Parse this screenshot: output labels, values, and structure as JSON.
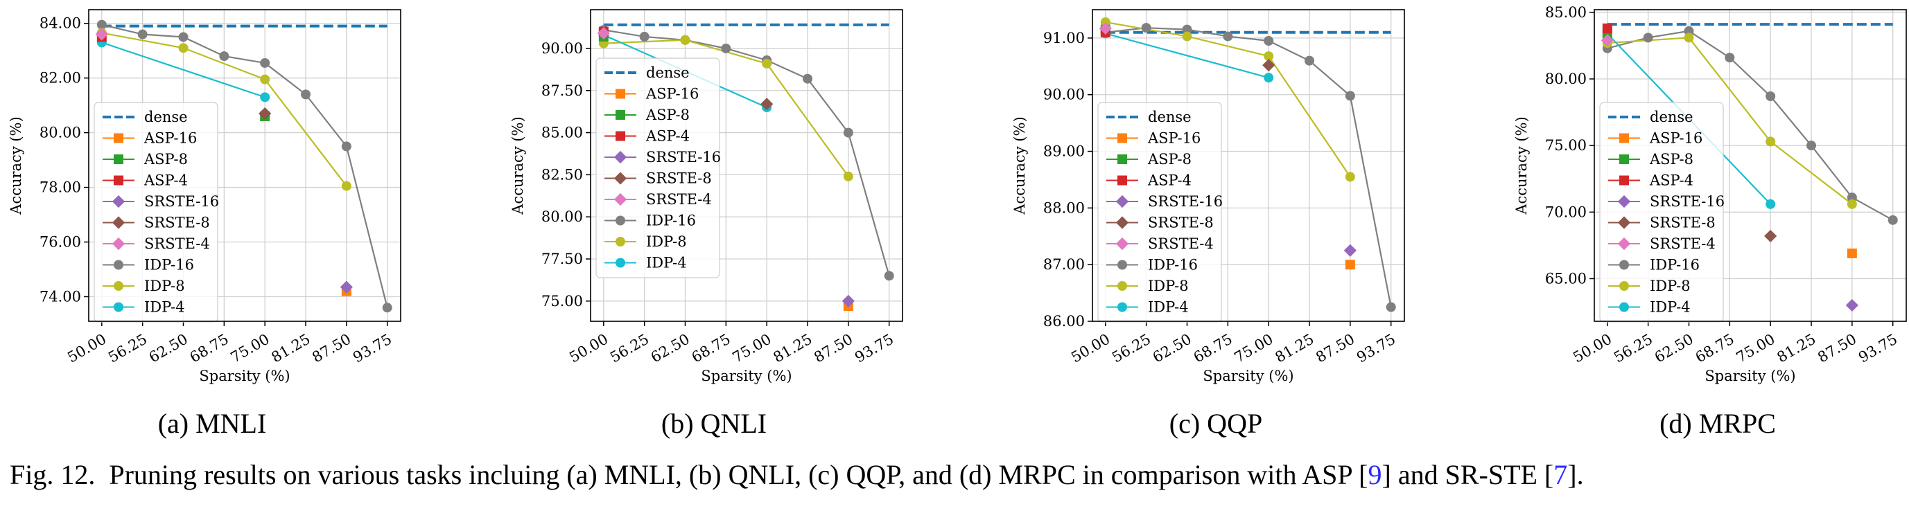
{
  "figure": {
    "caption_prefix": "Fig. 12.",
    "caption_part1": "Pruning results on various tasks incluing (a) MNLI, (b) QNLI, (c) QQP, and (d) MRPC in comparison with ASP [",
    "caption_ref1": "9",
    "caption_part2": "] and SR-STE [",
    "caption_ref2": "7",
    "caption_part3": "]."
  },
  "subcaptions": [
    "(a) MNLI",
    "(b) QNLI",
    "(c) QQP",
    "(d) MRPC"
  ],
  "colors": {
    "dense": "#1f77b4",
    "ASP-16": "#ff7f0e",
    "ASP-8": "#2ca02c",
    "ASP-4": "#d62728",
    "SRSTE-16": "#9467bd",
    "SRSTE-8": "#8c564b",
    "SRSTE-4": "#e377c2",
    "IDP-16": "#7f7f7f",
    "IDP-8": "#bcbd22",
    "IDP-4": "#17becf"
  },
  "legend": [
    {
      "name": "dense",
      "marker": "dash"
    },
    {
      "name": "ASP-16",
      "marker": "square"
    },
    {
      "name": "ASP-8",
      "marker": "square"
    },
    {
      "name": "ASP-4",
      "marker": "square"
    },
    {
      "name": "SRSTE-16",
      "marker": "diamond"
    },
    {
      "name": "SRSTE-8",
      "marker": "diamond"
    },
    {
      "name": "SRSTE-4",
      "marker": "diamond"
    },
    {
      "name": "IDP-16",
      "marker": "circle"
    },
    {
      "name": "IDP-8",
      "marker": "circle"
    },
    {
      "name": "IDP-4",
      "marker": "circle"
    }
  ],
  "chart_data": [
    {
      "type": "line",
      "xlabel": "Sparsity (%)",
      "ylabel": "Accuracy (%)",
      "x_ticks": [
        50.0,
        56.25,
        62.5,
        68.75,
        75.0,
        81.25,
        87.5,
        93.75
      ],
      "x_tick_labels": [
        "50.00",
        "56.25",
        "62.50",
        "68.75",
        "75.00",
        "81.25",
        "87.50",
        "93.75"
      ],
      "xlim": [
        48.0,
        95.8
      ],
      "ylim": [
        73.1,
        84.5
      ],
      "y_ticks": [
        74,
        76,
        78,
        80,
        82,
        84
      ],
      "y_tick_labels": [
        "74.00",
        "76.00",
        "78.00",
        "80.00",
        "82.00",
        "84.00"
      ],
      "grid": true,
      "legend_position": "lower-left",
      "dense": 83.9,
      "series": [
        {
          "name": "ASP-16",
          "x": [
            87.5
          ],
          "y": [
            74.2
          ]
        },
        {
          "name": "ASP-8",
          "x": [
            75.0
          ],
          "y": [
            80.6
          ]
        },
        {
          "name": "ASP-4",
          "x": [
            50.0
          ],
          "y": [
            83.5
          ]
        },
        {
          "name": "SRSTE-16",
          "x": [
            87.5
          ],
          "y": [
            74.35
          ]
        },
        {
          "name": "SRSTE-8",
          "x": [
            75.0
          ],
          "y": [
            80.7
          ]
        },
        {
          "name": "SRSTE-4",
          "x": [
            50.0
          ],
          "y": [
            83.6
          ]
        },
        {
          "name": "IDP-16",
          "x": [
            50.0,
            56.25,
            62.5,
            68.75,
            75.0,
            81.25,
            87.5,
            93.75
          ],
          "y": [
            83.95,
            83.6,
            83.5,
            82.8,
            82.55,
            81.4,
            79.5,
            73.6
          ]
        },
        {
          "name": "IDP-8",
          "x": [
            50.0,
            62.5,
            75.0,
            87.5
          ],
          "y": [
            83.65,
            83.1,
            81.95,
            78.05
          ]
        },
        {
          "name": "IDP-4",
          "x": [
            50.0,
            75.0
          ],
          "y": [
            83.3,
            81.3
          ]
        }
      ]
    },
    {
      "type": "line",
      "xlabel": "Sparsity (%)",
      "ylabel": "Accuracy (%)",
      "x_ticks": [
        50.0,
        56.25,
        62.5,
        68.75,
        75.0,
        81.25,
        87.5,
        93.75
      ],
      "x_tick_labels": [
        "50.00",
        "56.25",
        "62.50",
        "68.75",
        "75.00",
        "81.25",
        "87.50",
        "93.75"
      ],
      "xlim": [
        48.0,
        95.8
      ],
      "ylim": [
        73.8,
        92.3
      ],
      "y_ticks": [
        75.0,
        77.5,
        80.0,
        82.5,
        85.0,
        87.5,
        90.0
      ],
      "y_tick_labels": [
        "75.00",
        "77.50",
        "80.00",
        "82.50",
        "85.00",
        "87.50",
        "90.00"
      ],
      "grid": true,
      "legend_position": "left",
      "dense": 91.4,
      "series": [
        {
          "name": "ASP-16",
          "x": [
            87.5
          ],
          "y": [
            74.7
          ]
        },
        {
          "name": "ASP-8",
          "x": [
            50.0
          ],
          "y": [
            90.7
          ]
        },
        {
          "name": "ASP-4",
          "x": [
            50.0
          ],
          "y": [
            91.0
          ]
        },
        {
          "name": "SRSTE-16",
          "x": [
            87.5
          ],
          "y": [
            75.0
          ]
        },
        {
          "name": "SRSTE-8",
          "x": [
            75.0
          ],
          "y": [
            86.7
          ]
        },
        {
          "name": "SRSTE-4",
          "x": [
            50.0
          ],
          "y": [
            90.9
          ]
        },
        {
          "name": "IDP-16",
          "x": [
            50.0,
            56.25,
            62.5,
            68.75,
            75.0,
            81.25,
            87.5,
            93.75
          ],
          "y": [
            91.1,
            90.7,
            90.5,
            90.0,
            89.3,
            88.2,
            85.0,
            76.5
          ]
        },
        {
          "name": "IDP-8",
          "x": [
            50.0,
            62.5,
            75.0,
            87.5
          ],
          "y": [
            90.3,
            90.5,
            89.1,
            82.4
          ]
        },
        {
          "name": "IDP-4",
          "x": [
            50.0,
            75.0
          ],
          "y": [
            90.8,
            86.5
          ]
        }
      ]
    },
    {
      "type": "line",
      "xlabel": "Sparsity (%)",
      "ylabel": "Accuracy (%)",
      "x_ticks": [
        50.0,
        56.25,
        62.5,
        68.75,
        75.0,
        81.25,
        87.5,
        93.75
      ],
      "x_tick_labels": [
        "50.00",
        "56.25",
        "62.50",
        "68.75",
        "75.00",
        "81.25",
        "87.50",
        "93.75"
      ],
      "xlim": [
        48.0,
        95.8
      ],
      "ylim": [
        86.0,
        91.5
      ],
      "y_ticks": [
        86,
        87,
        88,
        89,
        90,
        91
      ],
      "y_tick_labels": [
        "86.00",
        "87.00",
        "88.00",
        "89.00",
        "90.00",
        "91.00"
      ],
      "grid": true,
      "legend_position": "lower-left",
      "dense": 91.1,
      "series": [
        {
          "name": "ASP-16",
          "x": [
            87.5
          ],
          "y": [
            87.0
          ]
        },
        {
          "name": "ASP-8",
          "x": [
            50.0
          ],
          "y": [
            91.15
          ]
        },
        {
          "name": "ASP-4",
          "x": [
            50.0
          ],
          "y": [
            91.1
          ]
        },
        {
          "name": "SRSTE-16",
          "x": [
            87.5
          ],
          "y": [
            87.25
          ]
        },
        {
          "name": "SRSTE-8",
          "x": [
            75.0
          ],
          "y": [
            90.52
          ]
        },
        {
          "name": "SRSTE-4",
          "x": [
            50.0
          ],
          "y": [
            91.17
          ]
        },
        {
          "name": "IDP-16",
          "x": [
            50.0,
            56.25,
            62.5,
            68.75,
            75.0,
            81.25,
            87.5,
            93.75
          ],
          "y": [
            91.1,
            91.18,
            91.15,
            91.03,
            90.95,
            90.6,
            89.98,
            86.25
          ]
        },
        {
          "name": "IDP-8",
          "x": [
            50.0,
            62.5,
            75.0,
            87.5
          ],
          "y": [
            91.28,
            91.03,
            90.68,
            88.55
          ]
        },
        {
          "name": "IDP-4",
          "x": [
            50.0,
            75.0
          ],
          "y": [
            91.08,
            90.3
          ]
        }
      ]
    },
    {
      "type": "line",
      "xlabel": "Sparsity (%)",
      "ylabel": "Accuracy (%)",
      "x_ticks": [
        50.0,
        56.25,
        62.5,
        68.75,
        75.0,
        81.25,
        87.5,
        93.75
      ],
      "x_tick_labels": [
        "50.00",
        "56.25",
        "62.50",
        "68.75",
        "75.00",
        "81.25",
        "87.50",
        "93.75"
      ],
      "xlim": [
        48.0,
        95.8
      ],
      "ylim": [
        61.8,
        85.2
      ],
      "y_ticks": [
        65,
        70,
        75,
        80,
        85
      ],
      "y_tick_labels": [
        "65.00",
        "70.00",
        "75.00",
        "80.00",
        "85.00"
      ],
      "grid": true,
      "legend_position": "lower-left",
      "dense": 84.1,
      "series": [
        {
          "name": "ASP-16",
          "x": [
            87.5
          ],
          "y": [
            66.9
          ]
        },
        {
          "name": "ASP-8",
          "x": [
            50.0
          ],
          "y": [
            83.4
          ]
        },
        {
          "name": "ASP-4",
          "x": [
            50.0
          ],
          "y": [
            83.8
          ]
        },
        {
          "name": "SRSTE-16",
          "x": [
            87.5
          ],
          "y": [
            63.0
          ]
        },
        {
          "name": "SRSTE-8",
          "x": [
            75.0
          ],
          "y": [
            68.2
          ]
        },
        {
          "name": "SRSTE-4",
          "x": [
            50.0
          ],
          "y": [
            82.9
          ]
        },
        {
          "name": "IDP-16",
          "x": [
            50.0,
            56.25,
            62.5,
            68.75,
            75.0,
            81.25,
            87.5,
            93.75
          ],
          "y": [
            82.3,
            83.1,
            83.6,
            81.6,
            78.7,
            75.0,
            71.1,
            69.4
          ]
        },
        {
          "name": "IDP-8",
          "x": [
            50.0,
            62.5,
            75.0,
            87.5
          ],
          "y": [
            82.7,
            83.1,
            75.3,
            70.6
          ]
        },
        {
          "name": "IDP-4",
          "x": [
            50.0,
            75.0
          ],
          "y": [
            83.4,
            70.6
          ]
        }
      ]
    }
  ]
}
